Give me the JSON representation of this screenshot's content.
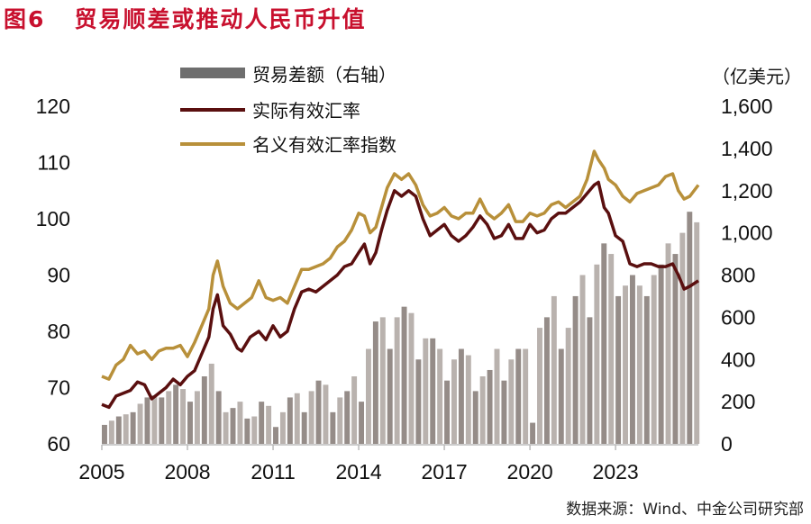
{
  "title": "图6   贸易顺差或推动人民币升值",
  "source": "数据来源：Wind、中金公司研究部",
  "colors": {
    "title": "#c8102e",
    "reer": "#5a0f0f",
    "neer": "#b8903a",
    "bars": "#a49c98"
  },
  "chart_data": {
    "type": "line+bar",
    "title": "贸易顺差或推动人民币升值",
    "right_unit": "（亿美元）",
    "legend": [
      "贸易差额（右轴）",
      "实际有效汇率",
      "名义有效汇率指数"
    ],
    "legend_position": "top-center",
    "x_ticks": [
      "2005",
      "2008",
      "2011",
      "2014",
      "2017",
      "2020",
      "2023"
    ],
    "x_range": [
      2005,
      2025.9
    ],
    "y_left": {
      "range": [
        60,
        120
      ],
      "ticks": [
        "60",
        "70",
        "80",
        "90",
        "100",
        "110",
        "120"
      ]
    },
    "y_right": {
      "range": [
        0,
        1600
      ],
      "ticks": [
        "0",
        "200",
        "400",
        "600",
        "800",
        "1,000",
        "1,200",
        "1,400",
        "1,600"
      ]
    },
    "bars": {
      "name": "贸易差额（右轴）",
      "start": 2005,
      "step": 0.25,
      "values": [
        90,
        110,
        130,
        140,
        150,
        190,
        220,
        230,
        220,
        250,
        280,
        260,
        200,
        250,
        320,
        380,
        250,
        150,
        170,
        200,
        120,
        130,
        200,
        180,
        80,
        150,
        220,
        240,
        150,
        250,
        300,
        280,
        150,
        220,
        250,
        320,
        200,
        450,
        580,
        600,
        450,
        600,
        650,
        620,
        400,
        500,
        500,
        450,
        300,
        400,
        450,
        420,
        250,
        320,
        350,
        450,
        300,
        400,
        450,
        450,
        100,
        550,
        600,
        700,
        450,
        550,
        700,
        800,
        600,
        850,
        950,
        900,
        700,
        750,
        800,
        750,
        700,
        800,
        850,
        950,
        900,
        1000,
        1100,
        1050
      ]
    },
    "series": [
      {
        "name": "实际有效汇率",
        "points": [
          [
            2005,
            67
          ],
          [
            2005.25,
            66.5
          ],
          [
            2005.5,
            68.5
          ],
          [
            2005.75,
            69
          ],
          [
            2006,
            69.5
          ],
          [
            2006.25,
            71
          ],
          [
            2006.5,
            70.5
          ],
          [
            2006.75,
            68
          ],
          [
            2007,
            69
          ],
          [
            2007.25,
            70
          ],
          [
            2007.5,
            71.5
          ],
          [
            2007.75,
            70.5
          ],
          [
            2008,
            72
          ],
          [
            2008.25,
            73
          ],
          [
            2008.5,
            76
          ],
          [
            2008.75,
            79
          ],
          [
            2008.9,
            84
          ],
          [
            2009.05,
            86.5
          ],
          [
            2009.25,
            81
          ],
          [
            2009.5,
            79.5
          ],
          [
            2009.75,
            77
          ],
          [
            2009.9,
            76.5
          ],
          [
            2010.2,
            79
          ],
          [
            2010.5,
            80
          ],
          [
            2010.75,
            78.5
          ],
          [
            2011,
            81
          ],
          [
            2011.25,
            79
          ],
          [
            2011.5,
            80
          ],
          [
            2011.75,
            84
          ],
          [
            2012,
            87
          ],
          [
            2012.25,
            87.5
          ],
          [
            2012.5,
            87
          ],
          [
            2012.75,
            88
          ],
          [
            2013,
            89
          ],
          [
            2013.25,
            90
          ],
          [
            2013.5,
            91.5
          ],
          [
            2013.75,
            92
          ],
          [
            2014,
            94
          ],
          [
            2014.2,
            95.5
          ],
          [
            2014.4,
            92
          ],
          [
            2014.6,
            94
          ],
          [
            2014.8,
            98
          ],
          [
            2015,
            101.5
          ],
          [
            2015.25,
            105
          ],
          [
            2015.5,
            104
          ],
          [
            2015.75,
            105
          ],
          [
            2016,
            104
          ],
          [
            2016.25,
            100
          ],
          [
            2016.5,
            97
          ],
          [
            2016.75,
            98
          ],
          [
            2017,
            99
          ],
          [
            2017.25,
            97
          ],
          [
            2017.5,
            96
          ],
          [
            2017.75,
            97
          ],
          [
            2018,
            98.5
          ],
          [
            2018.25,
            100.5
          ],
          [
            2018.5,
            99
          ],
          [
            2018.75,
            96.5
          ],
          [
            2019,
            97
          ],
          [
            2019.25,
            99
          ],
          [
            2019.5,
            96.5
          ],
          [
            2019.75,
            96.5
          ],
          [
            2020,
            99
          ],
          [
            2020.25,
            97.5
          ],
          [
            2020.5,
            98
          ],
          [
            2020.75,
            100
          ],
          [
            2021,
            101
          ],
          [
            2021.25,
            101
          ],
          [
            2021.5,
            102
          ],
          [
            2021.75,
            103
          ],
          [
            2022,
            104.5
          ],
          [
            2022.25,
            106
          ],
          [
            2022.4,
            106.5
          ],
          [
            2022.6,
            102
          ],
          [
            2022.75,
            101
          ],
          [
            2023,
            97
          ],
          [
            2023.25,
            96
          ],
          [
            2023.5,
            92
          ],
          [
            2023.75,
            91.5
          ],
          [
            2024,
            92
          ],
          [
            2024.25,
            92
          ],
          [
            2024.5,
            91.5
          ],
          [
            2024.75,
            91.5
          ],
          [
            2025,
            92
          ],
          [
            2025.2,
            90
          ],
          [
            2025.4,
            87.5
          ],
          [
            2025.6,
            88
          ],
          [
            2025.9,
            89
          ]
        ]
      },
      {
        "name": "名义有效汇率指数",
        "points": [
          [
            2005,
            72
          ],
          [
            2005.25,
            71.5
          ],
          [
            2005.5,
            74
          ],
          [
            2005.75,
            75
          ],
          [
            2006,
            77.5
          ],
          [
            2006.25,
            76
          ],
          [
            2006.5,
            76.5
          ],
          [
            2006.75,
            75
          ],
          [
            2007,
            76.5
          ],
          [
            2007.25,
            77
          ],
          [
            2007.5,
            77
          ],
          [
            2007.75,
            77.5
          ],
          [
            2008,
            75.5
          ],
          [
            2008.25,
            78
          ],
          [
            2008.5,
            81
          ],
          [
            2008.75,
            84
          ],
          [
            2008.9,
            90
          ],
          [
            2009.05,
            92.5
          ],
          [
            2009.25,
            88
          ],
          [
            2009.5,
            85
          ],
          [
            2009.75,
            84
          ],
          [
            2010,
            85
          ],
          [
            2010.25,
            86
          ],
          [
            2010.5,
            89
          ],
          [
            2010.75,
            86
          ],
          [
            2011,
            85.5
          ],
          [
            2011.25,
            86
          ],
          [
            2011.5,
            85
          ],
          [
            2011.75,
            88
          ],
          [
            2012,
            91
          ],
          [
            2012.25,
            91
          ],
          [
            2012.5,
            91.5
          ],
          [
            2012.75,
            92
          ],
          [
            2013,
            93
          ],
          [
            2013.25,
            95
          ],
          [
            2013.5,
            96
          ],
          [
            2013.75,
            98
          ],
          [
            2014,
            101
          ],
          [
            2014.2,
            100.5
          ],
          [
            2014.4,
            97.5
          ],
          [
            2014.6,
            98.5
          ],
          [
            2014.8,
            102
          ],
          [
            2015,
            105.5
          ],
          [
            2015.25,
            108
          ],
          [
            2015.5,
            107
          ],
          [
            2015.75,
            108
          ],
          [
            2016,
            106
          ],
          [
            2016.25,
            102.5
          ],
          [
            2016.5,
            100.5
          ],
          [
            2016.75,
            101
          ],
          [
            2017,
            102
          ],
          [
            2017.25,
            100.5
          ],
          [
            2017.5,
            100
          ],
          [
            2017.75,
            101
          ],
          [
            2018,
            101
          ],
          [
            2018.25,
            103.5
          ],
          [
            2018.5,
            101
          ],
          [
            2018.75,
            100
          ],
          [
            2019,
            101
          ],
          [
            2019.25,
            102.5
          ],
          [
            2019.5,
            99.5
          ],
          [
            2019.75,
            99.5
          ],
          [
            2020,
            101
          ],
          [
            2020.25,
            100.5
          ],
          [
            2020.5,
            101
          ],
          [
            2020.75,
            102.5
          ],
          [
            2021,
            103
          ],
          [
            2021.25,
            102
          ],
          [
            2021.5,
            103
          ],
          [
            2021.75,
            104
          ],
          [
            2022,
            107
          ],
          [
            2022.25,
            112
          ],
          [
            2022.4,
            110.5
          ],
          [
            2022.6,
            109
          ],
          [
            2022.75,
            107
          ],
          [
            2023,
            106
          ],
          [
            2023.25,
            104
          ],
          [
            2023.5,
            103
          ],
          [
            2023.75,
            104.5
          ],
          [
            2024,
            105
          ],
          [
            2024.25,
            105.5
          ],
          [
            2024.5,
            106
          ],
          [
            2024.75,
            107.5
          ],
          [
            2025,
            108
          ],
          [
            2025.2,
            105
          ],
          [
            2025.4,
            103.5
          ],
          [
            2025.6,
            104
          ],
          [
            2025.9,
            106
          ]
        ]
      }
    ]
  }
}
